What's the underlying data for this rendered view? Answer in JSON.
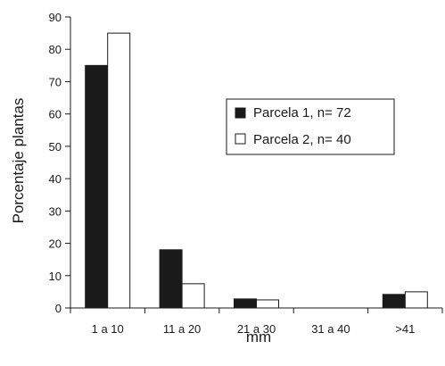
{
  "chart_data": {
    "type": "bar",
    "title": "",
    "xlabel": "mm",
    "ylabel": "Porcentaje plantas",
    "categories": [
      "1 a 10",
      "11 a 20",
      "21 a 30",
      "31 a 40",
      ">41"
    ],
    "series": [
      {
        "name": "Parcela 1, n= 72",
        "values": [
          75,
          18,
          2.8,
          0,
          4.2
        ],
        "color": "#1a1a1a"
      },
      {
        "name": "Parcela 2, n= 40",
        "values": [
          85,
          7.5,
          2.5,
          0,
          5
        ],
        "color": "#ffffff"
      }
    ],
    "ylim": [
      0,
      90
    ],
    "yticks": [
      0,
      10,
      20,
      30,
      40,
      50,
      60,
      70,
      80,
      90
    ],
    "grid": false,
    "legend_position": "right"
  }
}
